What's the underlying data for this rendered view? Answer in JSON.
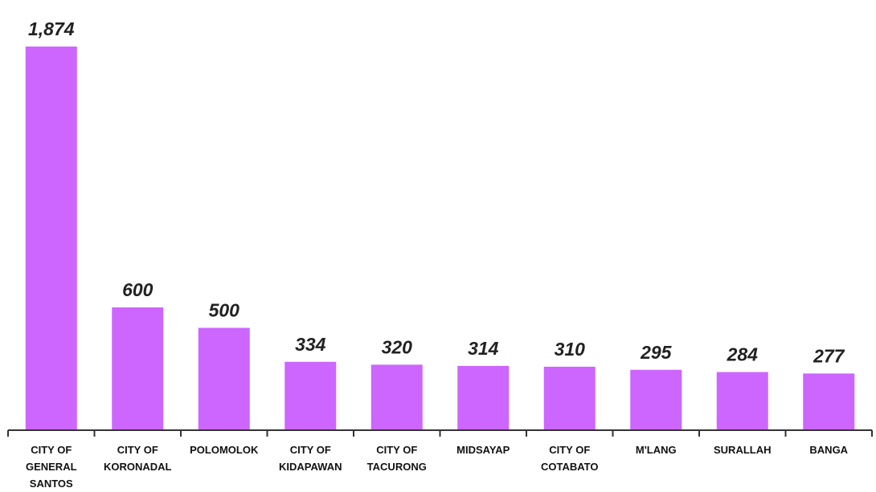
{
  "chart_data": {
    "type": "bar",
    "categories": [
      "CITY OF GENERAL SANTOS",
      "CITY OF KORONADAL",
      "POLOMOLOK",
      "CITY OF KIDAPAWAN",
      "CITY OF TACURONG",
      "MIDSAYAP",
      "CITY OF COTABATO",
      "M'LANG",
      "SURALLAH",
      "BANGA"
    ],
    "values": [
      1874,
      600,
      500,
      334,
      320,
      314,
      310,
      295,
      284,
      277
    ],
    "value_labels": [
      "1,874",
      "600",
      "500",
      "334",
      "320",
      "314",
      "310",
      "295",
      "284",
      "277"
    ],
    "color": "#cc66ff"
  }
}
